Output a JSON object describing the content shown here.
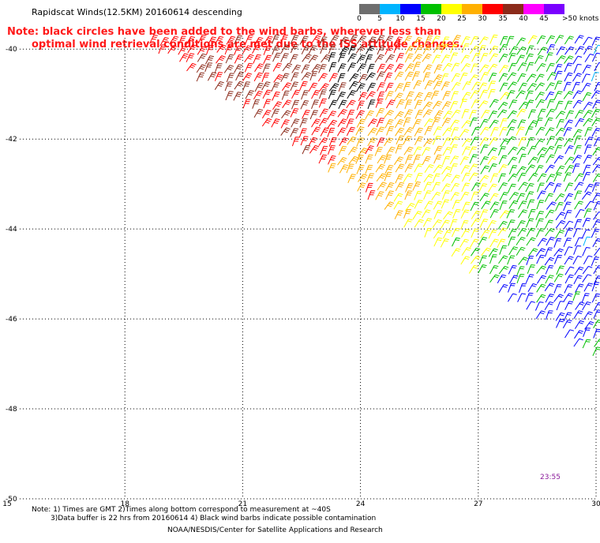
{
  "title": "Rapidscat Winds(12.5KM) 20160614 descending",
  "note_line1": "Note: black circles have been added to the wind barbs, wherever less than",
  "note_line2": "optimal wind retrieval conditions are met due to the ISS attitude changes.",
  "legend": {
    "labels": [
      "0",
      "5",
      "10",
      "15",
      "20",
      "25",
      "30",
      "35",
      "40",
      "45",
      ">50 knots"
    ],
    "colors": [
      "#6e6e6e",
      "#00b4ff",
      "#0000ff",
      "#00c000",
      "#ffff00",
      "#ffb000",
      "#ff0000",
      "#8b2a1a",
      "#ff00ff",
      "#7a00ff"
    ]
  },
  "time_label": "23:55",
  "footer_line1": "Note: 1) Times are GMT 2)Times along bottom correspond to measurement at ~40S",
  "footer_line2": "3)Data buffer is 22 hrs from 20160614 4) Black wind barbs indicate possible contamination",
  "footer_line3": "NOAA/NESDIS/Center for Satellite Applications and Research",
  "chart_data": {
    "type": "scatter",
    "title": "Rapidscat Winds(12.5KM) 20160614 descending",
    "xlabel": "",
    "ylabel": "",
    "x_ticks": [
      "15",
      "18",
      "21",
      "24",
      "27",
      "30"
    ],
    "y_ticks": [
      "-40",
      "-42",
      "-44",
      "-46",
      "-48",
      "-50"
    ],
    "xlim": [
      15,
      30
    ],
    "ylim": [
      -50,
      -39.75
    ],
    "grid": true,
    "swath_edge": {
      "start": [
        18.5,
        -39.9
      ],
      "end": [
        30,
        -47.0
      ]
    },
    "speed_zones": [
      {
        "lon": 20.5,
        "lat": -41.0,
        "speed_kt": 37
      },
      {
        "lon": 22.0,
        "lat": -42.0,
        "speed_kt": 36
      },
      {
        "lon": 23.5,
        "lat": -40.8,
        "speed_kt": 35
      },
      {
        "lon": 22.5,
        "lat": -40.5,
        "speed_kt": 40
      },
      {
        "lon": 24.0,
        "lat": -40.2,
        "speed_kt": 42
      },
      {
        "lon": 22.2,
        "lat": -41.3,
        "speed_kt": 33
      },
      {
        "lon": 24.5,
        "lat": -42.5,
        "speed_kt": 28
      },
      {
        "lon": 24.0,
        "lat": -43.5,
        "speed_kt": 30
      },
      {
        "lon": 25.5,
        "lat": -41.0,
        "speed_kt": 28
      },
      {
        "lon": 25.5,
        "lat": -43.8,
        "speed_kt": 22
      },
      {
        "lon": 26.5,
        "lat": -40.5,
        "speed_kt": 22
      },
      {
        "lon": 27.0,
        "lat": -42.0,
        "speed_kt": 20
      },
      {
        "lon": 27.0,
        "lat": -44.5,
        "speed_kt": 22
      },
      {
        "lon": 28.2,
        "lat": -41.0,
        "speed_kt": 17
      },
      {
        "lon": 28.5,
        "lat": -43.0,
        "speed_kt": 16
      },
      {
        "lon": 29.5,
        "lat": -41.5,
        "speed_kt": 15
      },
      {
        "lon": 29.8,
        "lat": -43.5,
        "speed_kt": 13
      },
      {
        "lon": 28.5,
        "lat": -45.0,
        "speed_kt": 15
      },
      {
        "lon": 29.5,
        "lat": -44.5,
        "speed_kt": 10
      },
      {
        "lon": 29.8,
        "lat": -40.5,
        "speed_kt": 9
      },
      {
        "lon": 27.8,
        "lat": -45.8,
        "speed_kt": 11
      },
      {
        "lon": 29.0,
        "lat": -46.3,
        "speed_kt": 12
      },
      {
        "lon": 29.9,
        "lat": -46.8,
        "speed_kt": 14
      }
    ],
    "flagged_region": {
      "lon_min": 23.0,
      "lon_max": 24.2,
      "lat_min": -41.4,
      "lat_max": -40.1
    }
  }
}
